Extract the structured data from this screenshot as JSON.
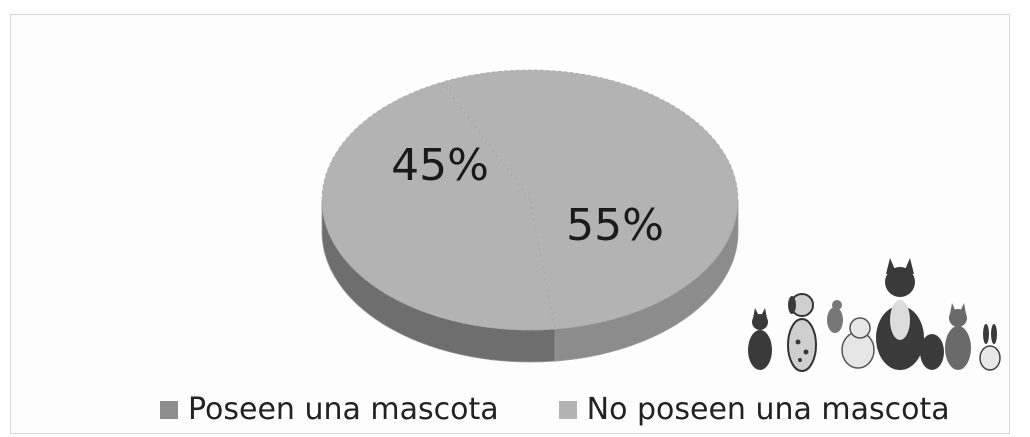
{
  "chart_data": {
    "type": "pie",
    "style": "3d",
    "title": "",
    "categories": [
      "Poseen una mascota",
      "No poseen una mascota"
    ],
    "values": [
      45,
      55
    ],
    "unit": "%",
    "data_labels": [
      "45%",
      "55%"
    ],
    "colors": [
      "#8d8d8d",
      "#b3b3b3"
    ],
    "legend_position": "bottom"
  }
}
